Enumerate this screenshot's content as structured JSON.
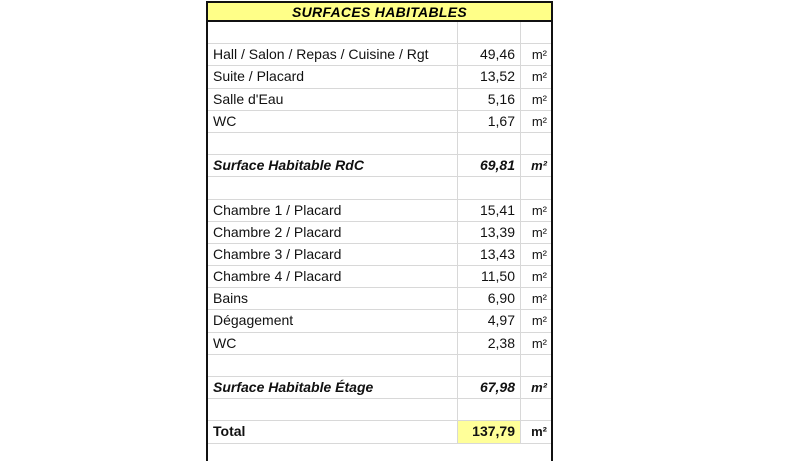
{
  "title": "SURFACES  HABITABLES",
  "rows": [
    {
      "label": "",
      "value": "",
      "unit": ""
    },
    {
      "label": "Hall / Salon / Repas / Cuisine / Rgt",
      "value": "49,46",
      "unit": "m²"
    },
    {
      "label": "Suite / Placard",
      "value": "13,52",
      "unit": "m²"
    },
    {
      "label": "Salle d'Eau",
      "value": "5,16",
      "unit": "m²"
    },
    {
      "label": "WC",
      "value": "1,67",
      "unit": "m²"
    },
    {
      "label": "",
      "value": "",
      "unit": ""
    },
    {
      "label": "Surface Habitable RdC",
      "value": "69,81",
      "unit": "m²",
      "style": "sub"
    },
    {
      "label": "",
      "value": "",
      "unit": ""
    },
    {
      "label": "Chambre 1 / Placard",
      "value": "15,41",
      "unit": "m²"
    },
    {
      "label": "Chambre 2 / Placard",
      "value": "13,39",
      "unit": "m²"
    },
    {
      "label": "Chambre 3 / Placard",
      "value": "13,43",
      "unit": "m²"
    },
    {
      "label": "Chambre 4 / Placard",
      "value": "11,50",
      "unit": "m²"
    },
    {
      "label": "Bains",
      "value": "6,90",
      "unit": "m²"
    },
    {
      "label": "Dégagement",
      "value": "4,97",
      "unit": "m²"
    },
    {
      "label": "WC",
      "value": "2,38",
      "unit": "m²"
    },
    {
      "label": "",
      "value": "",
      "unit": ""
    },
    {
      "label": "Surface Habitable Étage",
      "value": "67,98",
      "unit": "m²",
      "style": "sub"
    },
    {
      "label": "",
      "value": "",
      "unit": ""
    },
    {
      "label": "Total",
      "value": "137,79",
      "unit": "m²",
      "style": "tot"
    }
  ],
  "colors": {
    "header_bg": "#ffff88",
    "total_highlight": "#ffff99"
  }
}
